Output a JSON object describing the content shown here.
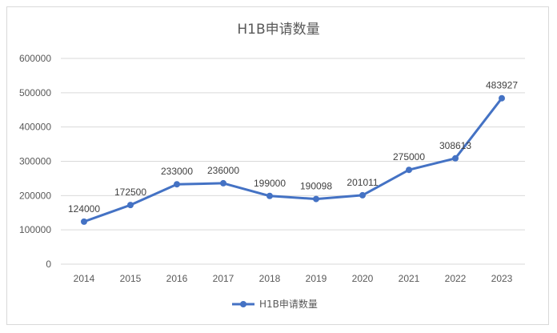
{
  "chart_data": {
    "type": "line",
    "title": "H1B申请数量",
    "categories": [
      "2014",
      "2015",
      "2016",
      "2017",
      "2018",
      "2019",
      "2020",
      "2021",
      "2022",
      "2023"
    ],
    "series": [
      {
        "name": "H1B申请数量",
        "values": [
          124000,
          172500,
          233000,
          236000,
          199000,
          190098,
          201011,
          275000,
          308613,
          483927
        ]
      }
    ],
    "ylim": [
      0,
      600000
    ],
    "yticks": [
      0,
      100000,
      200000,
      300000,
      400000,
      500000,
      600000
    ],
    "grid": true,
    "legend": "bottom",
    "data_labels": true,
    "colors": {
      "line": "#4472C4",
      "grid": "#d9d9d9"
    }
  }
}
